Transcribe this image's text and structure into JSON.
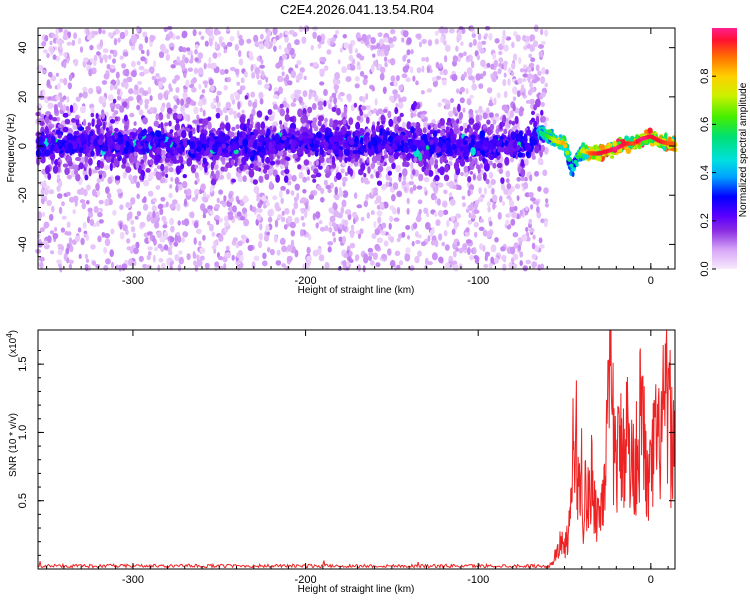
{
  "title": "C2E4.2026.041.13.54.R04",
  "chart_data": [
    {
      "type": "heatmap",
      "xlabel": "Height of straight line (km)",
      "ylabel": "Frequency (Hz)",
      "xlim": [
        -355,
        14
      ],
      "ylim": [
        -50,
        48
      ],
      "x_ticks": [
        -300,
        -200,
        -100,
        0
      ],
      "y_ticks": [
        -40,
        -20,
        0,
        20,
        40
      ],
      "x_tick_labels": [
        "-300",
        "-200",
        "-100",
        "0"
      ],
      "y_tick_labels": [
        "-40",
        "-20",
        "0",
        "20",
        "40"
      ],
      "colorbar": {
        "label": "Normalized spectral amplitude",
        "range": [
          0,
          1
        ],
        "ticks": [
          0.0,
          0.2,
          0.4,
          0.6,
          0.8
        ],
        "tick_labels": [
          "0.0",
          "0.2",
          "0.4",
          "0.6",
          "0.8"
        ],
        "colormap": "rainbow"
      },
      "ridge": {
        "x": [
          -355,
          -300,
          -250,
          -200,
          -150,
          -100,
          -70,
          -65,
          -60,
          -55,
          -50,
          -47,
          -45,
          -43,
          -40,
          -35,
          -30,
          -25,
          -20,
          -15,
          -10,
          -5,
          0,
          5,
          10,
          14
        ],
        "y": [
          1,
          1,
          0,
          2,
          1,
          0,
          1,
          6,
          4,
          2,
          1,
          -6,
          -10,
          -5,
          -2,
          -3,
          -3,
          -2,
          -1,
          1,
          1,
          3,
          4,
          2,
          1,
          1
        ],
        "amplitude": [
          0.2,
          0.2,
          0.2,
          0.2,
          0.2,
          0.2,
          0.25,
          0.45,
          0.55,
          0.7,
          0.8,
          0.5,
          0.4,
          0.5,
          0.65,
          0.85,
          0.9,
          0.9,
          0.95,
          0.9,
          0.85,
          0.95,
          0.9,
          0.9,
          0.85,
          0.85
        ]
      }
    },
    {
      "type": "line",
      "xlabel": "Height of straight line (km)",
      "ylabel": "SNR (10 * v/v)",
      "y_multiplier": "(x10",
      "y_multiplier_exp": "4",
      "y_multiplier_close": ")",
      "xlim": [
        -355,
        14
      ],
      "ylim": [
        0,
        1.75
      ],
      "x_ticks": [
        -300,
        -200,
        -100,
        0
      ],
      "y_ticks": [
        0.5,
        1.0,
        1.5
      ],
      "x_tick_labels": [
        "-300",
        "-200",
        "-100",
        "0"
      ],
      "y_tick_labels": [
        "0.5",
        "1.0",
        "1.5"
      ],
      "series": [
        {
          "color": "#ee2222",
          "x": [
            -355,
            -100,
            -60,
            -57,
            -55,
            -52,
            -50,
            -48,
            -46,
            -45,
            -44,
            -43,
            -42,
            -41,
            -40,
            -39,
            -38,
            -36,
            -34,
            -32,
            -30,
            -28,
            -26,
            -24,
            -23,
            -22,
            -20,
            -18,
            -16,
            -14,
            -12,
            -10,
            -8,
            -6,
            -4,
            -2,
            0,
            2,
            4,
            6,
            8,
            10,
            12,
            14
          ],
          "y": [
            0.02,
            0.02,
            0.02,
            0.05,
            0.15,
            0.25,
            0.2,
            0.3,
            0.55,
            1.38,
            0.8,
            1.2,
            0.9,
            0.6,
            1.1,
            0.4,
            0.75,
            0.6,
            0.9,
            0.55,
            0.5,
            0.7,
            1.1,
            1.45,
            1.75,
            1.3,
            1.0,
            1.1,
            1.2,
            1.35,
            1.0,
            0.95,
            1.15,
            1.4,
            1.25,
            0.75,
            0.85,
            1.2,
            1.1,
            1.3,
            1.45,
            1.55,
            1.2,
            1.1
          ]
        }
      ]
    }
  ]
}
